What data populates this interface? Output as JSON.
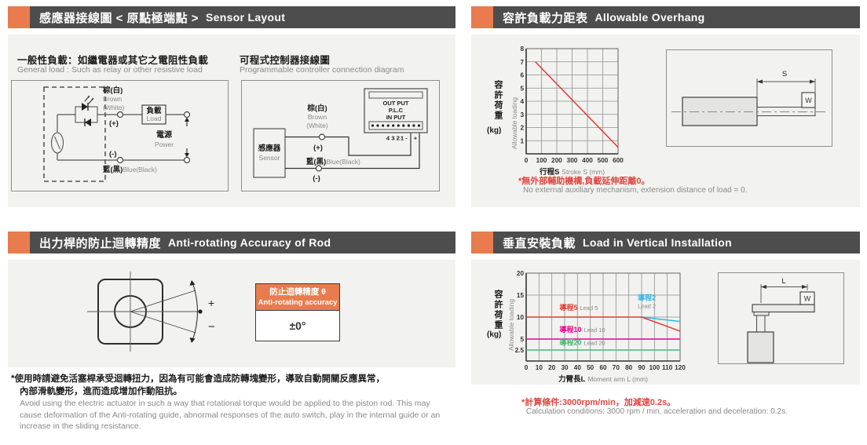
{
  "colors": {
    "accent": "#E87C4F",
    "titlebar": "#4D4D4D",
    "panel_bg": "#F2F2F0",
    "note_red": "#E2453F",
    "text_gray": "#8A8A8A"
  },
  "panels": {
    "sensor": {
      "title_zh": "感應器接線圖 < 原點極端點 >",
      "title_en": "Sensor Layout",
      "general": {
        "heading_zh": "一般性負載：如繼電器或其它之電阻性負載",
        "heading_en": "General load : Such as relay or other resistive load",
        "brown_zh": "棕(白)",
        "brown_en1": "Brown",
        "brown_en2": "(White)",
        "plus": "(+)",
        "minus": "(-)",
        "load_zh": "負載",
        "load_en": "Load",
        "power_zh": "電源",
        "power_en": "Power",
        "blue_zh": "藍(黑)",
        "blue_en": "Blue(Black)"
      },
      "plc": {
        "heading_zh": "可程式控制器接線圖",
        "heading_en": "Programmable controller connection diagram",
        "sensor_zh": "感應器",
        "sensor_en": "Sensor",
        "brown_zh": "棕(白)",
        "brown_en1": "Brown",
        "brown_en2": "(White)",
        "plus": "(+)",
        "minus": "(-)",
        "blue_zh": "藍(黑)",
        "blue_en": "Blue(Black)",
        "out_put": "OUT PUT",
        "plc_name": "P.L.C",
        "in_put": "IN PUT",
        "pin4": "4",
        "pin3": "3",
        "pin2": "2",
        "pin1": "1",
        "pin_minus": "-",
        "pin_plus": "+"
      }
    },
    "overhang": {
      "title_zh": "容許負載力距表",
      "title_en": "Allowable Overhang",
      "note_zh": "*無外部輔助機構,負載延伸距離0。",
      "note_en": "No external auxiliary mechanism, extension distance of load = 0.",
      "dim_label": "S",
      "weight_label": "W"
    },
    "antirotate": {
      "title_zh": "出力桿的防止迴轉精度",
      "title_en": "Anti-rotating Accuracy of Rod",
      "plus": "+",
      "minus": "−",
      "table_header_zh": "防止迴轉精度 θ",
      "table_header_en": "Anti-rotating accuracy",
      "table_value": "±0°",
      "note_zh_1": "*使用時請避免活塞桿承受迴轉扭力，因為有可能會造成防轉塊變形，導致自動開關反應異常，",
      "note_zh_2": "內部滑軌變形，進而造成增加作動阻抗。",
      "note_en": "Avoid using the electric actuator in such a way that rotational torque would be applied to the piston rod. This may cause deformation of the Anti-rotating guide, abnormal responses of the auto switch, play in the internal guide or an increase in the sliding resistance."
    },
    "vertical": {
      "title_zh": "垂直安裝負載",
      "title_en": "Load in Vertical Installation",
      "note_zh": "*計算條件:3000rpm/min，加減速0.2s。",
      "note_en": "Calculation conditions: 3000 rpm / min, acceleration and deceleration: 0.2s.",
      "dim_label": "L",
      "weight_label": "W"
    }
  },
  "chart_data": [
    {
      "type": "line",
      "title": "容許負載力距表 Allowable Overhang",
      "xlabel_zh": "行程S",
      "xlabel_en": "Stroke S (mm)",
      "ylabel_zh": "容許荷重",
      "ylabel_unit": "(kg)",
      "ylabel_en": "Allowable loading",
      "xlim": [
        0,
        600
      ],
      "ylim": [
        0,
        8
      ],
      "xticks": [
        0,
        100,
        200,
        300,
        400,
        500,
        600
      ],
      "yticks": [
        1,
        2,
        3,
        4,
        5,
        6,
        7,
        8
      ],
      "grid": true,
      "legend": "none",
      "series": [
        {
          "name": "容許荷重 Allowable loading",
          "color": "#E23B2E",
          "x": [
            60,
            600
          ],
          "y": [
            7,
            0.5
          ]
        }
      ],
      "annotations": []
    },
    {
      "type": "line",
      "title": "垂直安裝負載 Load in Vertical Installation",
      "xlabel_zh": "力臂長L",
      "xlabel_en": "Moment arm L (mm)",
      "ylabel_zh": "容許荷重",
      "ylabel_unit": "(kg)",
      "ylabel_en": "Allowable loading",
      "xlim": [
        0,
        120
      ],
      "ylim": [
        0,
        20
      ],
      "xticks": [
        0,
        10,
        20,
        30,
        40,
        50,
        60,
        70,
        80,
        90,
        100,
        110,
        120
      ],
      "yticks": [
        2.5,
        5,
        10,
        15,
        20
      ],
      "grid": true,
      "legend": "inline-annotations",
      "series": [
        {
          "name": "導程2 Lead 2",
          "color": "#2EB6EA",
          "x": [
            90,
            120
          ],
          "y": [
            10,
            9
          ]
        },
        {
          "name": "導程5 Lead 5",
          "color": "#E23B2E",
          "x": [
            0,
            90,
            120
          ],
          "y": [
            10,
            10,
            6.8
          ]
        },
        {
          "name": "導程10 Lead 10",
          "color": "#EC008C",
          "x": [
            0,
            120
          ],
          "y": [
            5,
            5
          ]
        },
        {
          "name": "導程20 Lead 20",
          "color": "#45B97C",
          "x": [
            0,
            120
          ],
          "y": [
            2.5,
            2.5
          ]
        }
      ],
      "annotations": [
        {
          "zh": "導程5",
          "en": "Lead 5",
          "x": 26,
          "y": 11.6,
          "color": "#E23B2E",
          "stack": false
        },
        {
          "zh": "導程2",
          "en": "Lead 2",
          "x": 87,
          "y": 13.8,
          "color": "#2EB6EA",
          "stack": true
        },
        {
          "zh": "導程10",
          "en": "Lead 10",
          "x": 26,
          "y": 6.6,
          "color": "#EC008C",
          "stack": false
        },
        {
          "zh": "導程20",
          "en": "Lead 20",
          "x": 26,
          "y": 3.7,
          "color": "#45B97C",
          "stack": false
        }
      ]
    }
  ]
}
